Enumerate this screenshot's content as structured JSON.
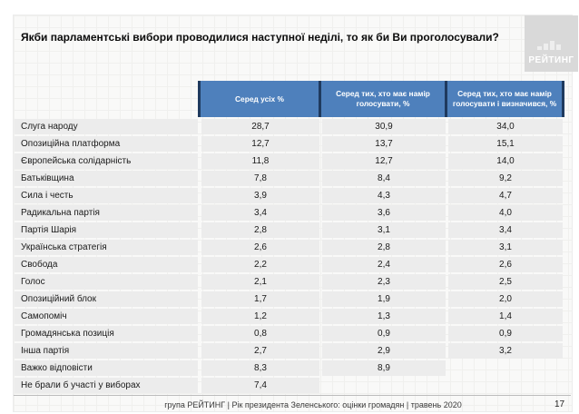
{
  "slide": {
    "title": "Якби парламентські вибори проводилися наступної неділі, то як би Ви проголосували?",
    "logo_text": "РЕЙТИНГ"
  },
  "chart_data": {
    "type": "table",
    "title": "Якби парламентські вибори проводилися наступної неділі, то як би Ви проголосували?",
    "columns": [
      "Серед усіх %",
      "Серед тих, хто має намір голосувати, %",
      "Серед тих, хто має намір голосувати і визначився, %"
    ],
    "rows": [
      {
        "label": "Слуга народу",
        "values": [
          "28,7",
          "30,9",
          "34,0"
        ]
      },
      {
        "label": "Опозиційна платформа",
        "values": [
          "12,7",
          "13,7",
          "15,1"
        ]
      },
      {
        "label": "Європейська солідарність",
        "values": [
          "11,8",
          "12,7",
          "14,0"
        ]
      },
      {
        "label": "Батьківщина",
        "values": [
          "7,8",
          "8,4",
          "9,2"
        ]
      },
      {
        "label": "Сила і честь",
        "values": [
          "3,9",
          "4,3",
          "4,7"
        ]
      },
      {
        "label": "Радикальна партія",
        "values": [
          "3,4",
          "3,6",
          "4,0"
        ]
      },
      {
        "label": "Партія Шарія",
        "values": [
          "2,8",
          "3,1",
          "3,4"
        ]
      },
      {
        "label": "Українська стратегія",
        "values": [
          "2,6",
          "2,8",
          "3,1"
        ]
      },
      {
        "label": "Свобода",
        "values": [
          "2,2",
          "2,4",
          "2,6"
        ]
      },
      {
        "label": "Голос",
        "values": [
          "2,1",
          "2,3",
          "2,5"
        ]
      },
      {
        "label": "Опозиційний блок",
        "values": [
          "1,7",
          "1,9",
          "2,0"
        ]
      },
      {
        "label": "Самопоміч",
        "values": [
          "1,2",
          "1,3",
          "1,4"
        ]
      },
      {
        "label": "Громадянська позиція",
        "values": [
          "0,8",
          "0,9",
          "0,9"
        ]
      },
      {
        "label": "Інша партія",
        "values": [
          "2,7",
          "2,9",
          "3,2"
        ]
      },
      {
        "label": "Важко відповісти",
        "values": [
          "8,3",
          "8,9",
          null
        ]
      },
      {
        "label": "Не брали б участі у виборах",
        "values": [
          "7,4",
          null,
          null
        ]
      }
    ]
  },
  "footer": {
    "source_line": "група РЕЙТИНГ |  Рік президента Зеленського: оцінки громадян | травень 2020",
    "page_number": "17"
  },
  "colors": {
    "header_bg": "#4e80bc",
    "header_divider": "#1f3a5e",
    "row_bg": "#ececec",
    "logo_bg": "#d9d9d9",
    "slide_bg": "#f9f9f8"
  }
}
